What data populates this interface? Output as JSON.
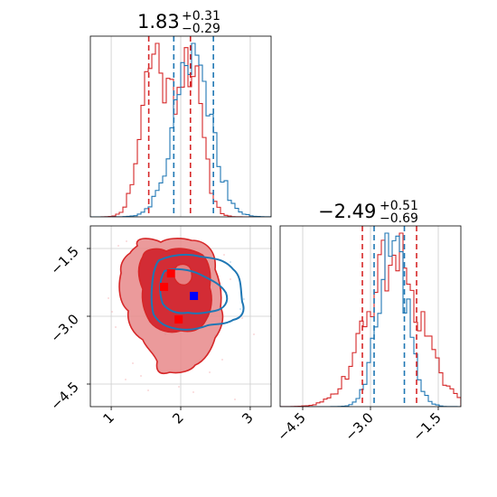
{
  "chart_data": {
    "type": "corner",
    "colors": {
      "red": "#d62728",
      "blue": "#1f77b4",
      "red_fill": "#e8888a",
      "red_dark": "#d0202a",
      "grid": "#cccccc"
    },
    "panels": [
      {
        "id": "hist-x",
        "type": "histogram",
        "title": {
          "value": "1.83",
          "plus": "+0.31",
          "minus": "−0.29"
        },
        "xlim": [
          0.7,
          3.3
        ],
        "grid_x": [
          1,
          2,
          3
        ],
        "series": [
          {
            "name": "",
            "color": "#d62728",
            "center": 1.83,
            "sigma": 0.3,
            "bimodal": 0.45
          },
          {
            "name": "",
            "color": "#1f77b4",
            "center": 2.17,
            "sigma": 0.27,
            "bimodal": 0
          }
        ],
        "quantile_lines": [
          {
            "color": "#d62728",
            "x": 1.54
          },
          {
            "color": "#d62728",
            "x": 2.14
          },
          {
            "color": "#1f77b4",
            "x": 1.9
          },
          {
            "color": "#1f77b4",
            "x": 2.47
          }
        ]
      },
      {
        "id": "hist-y",
        "type": "histogram",
        "title": {
          "value": "−2.49",
          "plus": "+0.51",
          "minus": "−0.69"
        },
        "xlim": [
          -5.0,
          -1.0
        ],
        "grid_x": [
          -4.5,
          -3.0,
          -1.5
        ],
        "series": [
          {
            "name": "",
            "color": "#d62728",
            "center": -2.49,
            "sigma": 0.6,
            "bimodal": 0
          },
          {
            "name": "",
            "color": "#1f77b4",
            "center": -2.5,
            "sigma": 0.32,
            "bimodal": 0
          }
        ],
        "quantile_lines": [
          {
            "color": "#d62728",
            "x": -3.18
          },
          {
            "color": "#d62728",
            "x": -1.98
          },
          {
            "color": "#1f77b4",
            "x": -2.92
          },
          {
            "color": "#1f77b4",
            "x": -2.25
          }
        ],
        "x_ticks": [
          "−4.5",
          "−3.0",
          "−1.5"
        ]
      },
      {
        "id": "scatter-xy",
        "type": "contour",
        "xlim": [
          0.7,
          3.3
        ],
        "ylim": [
          -5.0,
          -1.0
        ],
        "grid_x": [
          1,
          2,
          3
        ],
        "grid_y": [
          -1.5,
          -3.0,
          -4.5
        ],
        "x_ticks": [
          "1",
          "2",
          "3"
        ],
        "y_ticks": [
          "−1.5",
          "−3.0",
          "−4.5"
        ],
        "markers": [
          {
            "color": "#ff0000",
            "x": 1.86,
            "y": -2.05
          },
          {
            "color": "#ff0000",
            "x": 1.76,
            "y": -2.35
          },
          {
            "color": "#ff0000",
            "x": 1.97,
            "y": -3.07
          },
          {
            "color": "#0000ff",
            "x": 2.19,
            "y": -2.55
          }
        ]
      }
    ]
  }
}
